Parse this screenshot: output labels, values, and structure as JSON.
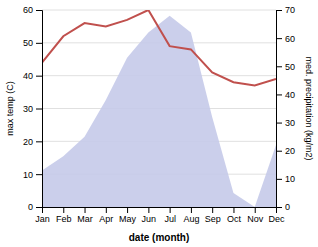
{
  "chart_data": {
    "type": "line",
    "xlabel": "date (month)",
    "ylabel": "max temp (C)",
    "y2label": "med. precipitation (kg/m2)",
    "categories": [
      "Jan",
      "Feb",
      "Mar",
      "Apr",
      "May",
      "Jun",
      "Jul",
      "Aug",
      "Sep",
      "Oct",
      "Nov",
      "Dec"
    ],
    "series": [
      {
        "type": "area",
        "axis": "y2",
        "color": "#c5cae9",
        "values": [
          13,
          18,
          25,
          38,
          53,
          62,
          68,
          62,
          32,
          5,
          0,
          22
        ]
      },
      {
        "type": "line",
        "color": "#c0504d",
        "values": [
          44,
          52,
          56,
          55,
          57,
          60,
          49,
          48,
          41,
          38,
          37,
          39
        ]
      }
    ],
    "ylim": [
      0,
      60
    ],
    "yticks": [
      0,
      10,
      20,
      30,
      40,
      50,
      60
    ],
    "y2lim": [
      0,
      70
    ],
    "y2ticks": [
      0,
      10,
      20,
      30,
      40,
      50,
      60,
      70
    ],
    "grid": true
  }
}
